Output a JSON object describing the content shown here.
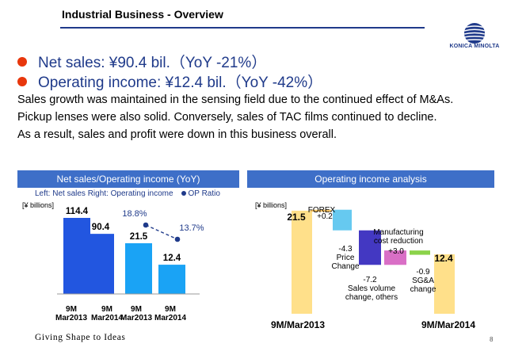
{
  "header": {
    "title": "Industrial Business - Overview",
    "logo_text": "KONICA MINOLTA",
    "page_number": "8"
  },
  "bullets": [
    {
      "text": "Net sales:  ¥90.4 bil.（YoY -21%）"
    },
    {
      "text": "Operating income:  ¥12.4 bil.（YoY -42%）"
    }
  ],
  "paragraphs": [
    "Sales growth was maintained in the sensing field due to the continued effect of M&As.",
    "Pickup lenses were also solid. Conversely, sales of TAC films continued to decline.",
    "As a result, sales and profit were down in this business overall."
  ],
  "footer": {
    "tagline": "Giving Shape to Ideas"
  },
  "colors": {
    "brand": "#1f3a8a",
    "panel_header": "#3e6fc8",
    "bullet_dot": "#e8370c",
    "bar_dark": "#2256e0",
    "bar_light": "#1aa3f5",
    "bar_base": "#ffe08a"
  },
  "left_panel": {
    "header": "Net sales/Operating income (YoY)",
    "legend_left": "Left: Net sales   Right: Operating income",
    "legend_dot": "OP Ratio",
    "unit": "[¥ billions]"
  },
  "right_panel": {
    "header": "Operating income analysis",
    "unit": "[¥ billions]"
  },
  "chart_data": [
    {
      "type": "bar",
      "categories": [
        "9M\nMar2013",
        "9M\nMar2014",
        "9M\nMar2013",
        "9M\nMar2014"
      ],
      "series": [
        {
          "name": "Net sales",
          "values": [
            114.4,
            90.4,
            null,
            null
          ]
        },
        {
          "name": "Operating income",
          "values": [
            null,
            null,
            21.5,
            12.4
          ]
        },
        {
          "name": "OP Ratio",
          "values": [
            null,
            null,
            18.8,
            13.7
          ],
          "unit": "%"
        }
      ],
      "data_labels": [
        "114.4",
        "90.4",
        "21.5",
        "12.4"
      ],
      "ratio_labels": [
        "18.8%",
        "13.7%"
      ]
    },
    {
      "type": "bar",
      "subtype": "waterfall",
      "categories": [
        "9M/Mar2013",
        "FOREX",
        "Price Change",
        "Sales volume change, others",
        "Manufacturing cost reduction",
        "SG&A change",
        "9M/Mar2014"
      ],
      "values": [
        21.5,
        0.2,
        -4.3,
        -7.2,
        3.0,
        -0.9,
        12.4
      ],
      "value_labels": [
        "21.5",
        "+0.2",
        "-4.3",
        "-7.2",
        "+3.0",
        "-0.9",
        "12.4"
      ],
      "step_labels": [
        "",
        "FOREX",
        "Price\nChange",
        "Sales volume\nchange, others",
        "Manufacturing\ncost reduction",
        "SG&A\nchange",
        ""
      ],
      "step_colors": [
        "#ffe08a",
        "#f5c264",
        "#66c9f0",
        "#4338c2",
        "#d96fc6",
        "#8bd34a",
        "#ffe08a"
      ],
      "axis_labels": [
        "9M/Mar2013",
        "9M/Mar2014"
      ]
    }
  ]
}
